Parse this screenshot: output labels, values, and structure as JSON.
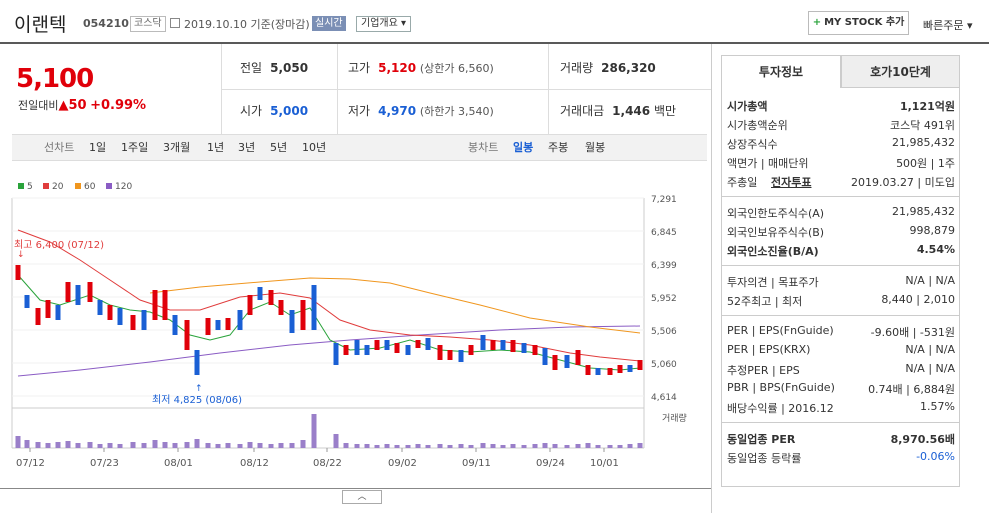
{
  "header": {
    "name": "이랜텍",
    "code": "054210",
    "market": "코스닥",
    "date": "2019.10.10 기준(장마감)",
    "realtime": "실시간",
    "company_info": "기업개요",
    "mystock": "MY STOCK 추가",
    "fast_order": "빠른주문"
  },
  "quote": {
    "price": "5,100",
    "change_label": "전일대비",
    "change": "▲50",
    "change_pct": "+0.99%",
    "prev_label": "전일",
    "prev": "5,050",
    "high_label": "고가",
    "high": "5,120",
    "upper_limit": "(상한가 6,560)",
    "volume_label": "거래량",
    "volume": "286,320",
    "open_label": "시가",
    "open": "5,000",
    "low_label": "저가",
    "low": "4,970",
    "lower_limit": "(하한가 3,540)",
    "amount_label": "거래대금",
    "amount": "1,446",
    "amount_unit": "백만"
  },
  "period": {
    "label": "선차트",
    "items": [
      "1일",
      "1주일",
      "3개월",
      "1년",
      "3년",
      "5년",
      "10년"
    ],
    "candle_label": "봉차트",
    "candle_items": [
      "일봉",
      "주봉",
      "월봉"
    ],
    "active": "일봉"
  },
  "legend": [
    {
      "name": "5",
      "color": "#2aa33b"
    },
    {
      "name": "20",
      "color": "#e03c3c"
    },
    {
      "name": "60",
      "color": "#f0961e"
    },
    {
      "name": "120",
      "color": "#8a5cc4"
    }
  ],
  "chart_data": {
    "type": "candlestick",
    "y_ticks": [
      "7,291",
      "6,845",
      "6,399",
      "5,952",
      "5,506",
      "5,060",
      "4,614"
    ],
    "x_ticks": [
      "07/12",
      "07/23",
      "08/01",
      "08/12",
      "08/22",
      "09/02",
      "09/11",
      "09/24",
      "10/01"
    ],
    "high_annotation": "최고 6,400 (07/12)",
    "low_annotation": "최저 4,825 (08/06)",
    "volume_label": "거래량",
    "ylim": [
      4614,
      7291
    ]
  },
  "panel": {
    "tab1": "투자정보",
    "tab2": "호가10단계",
    "rows1": [
      {
        "l": "시가총액",
        "r": "1,121억원",
        "bold": true
      },
      {
        "l": "시가총액순위",
        "r": "코스닥 491위"
      },
      {
        "l": "상장주식수",
        "r": "21,985,432"
      },
      {
        "l": "액면가 | 매매단위",
        "r": "500원 | 1주"
      },
      {
        "l": "주총일",
        "l2": "전자투표",
        "r": "2019.03.27 | 미도입"
      }
    ],
    "rows2": [
      {
        "l": "외국인한도주식수(A)",
        "r": "21,985,432"
      },
      {
        "l": "외국인보유주식수(B)",
        "r": "998,879"
      },
      {
        "l": "외국인소진율(B/A)",
        "r": "4.54%",
        "bold": true
      }
    ],
    "rows3": [
      {
        "l": "투자의견 | 목표주가",
        "r": "N/A | N/A"
      },
      {
        "l": "52주최고 | 최저",
        "r": "8,440 | 2,010"
      }
    ],
    "rows4": [
      {
        "l": "PER | EPS(FnGuide)",
        "r": "-9.60배 | -531원"
      },
      {
        "l": "PER | EPS(KRX)",
        "r": "N/A | N/A"
      },
      {
        "l": "추정PER | EPS",
        "r": "N/A | N/A"
      },
      {
        "l": "PBR | BPS(FnGuide)",
        "r": "0.74배 | 6,884원"
      },
      {
        "l": "배당수익률 | 2016.12",
        "r": "1.57%"
      }
    ],
    "rows5": [
      {
        "l": "동일업종 PER",
        "r": "8,970.56배",
        "bold": true
      },
      {
        "l": "동일업종 등락률",
        "r": "-0.06%",
        "blue": true
      }
    ]
  },
  "collapse": "︿"
}
